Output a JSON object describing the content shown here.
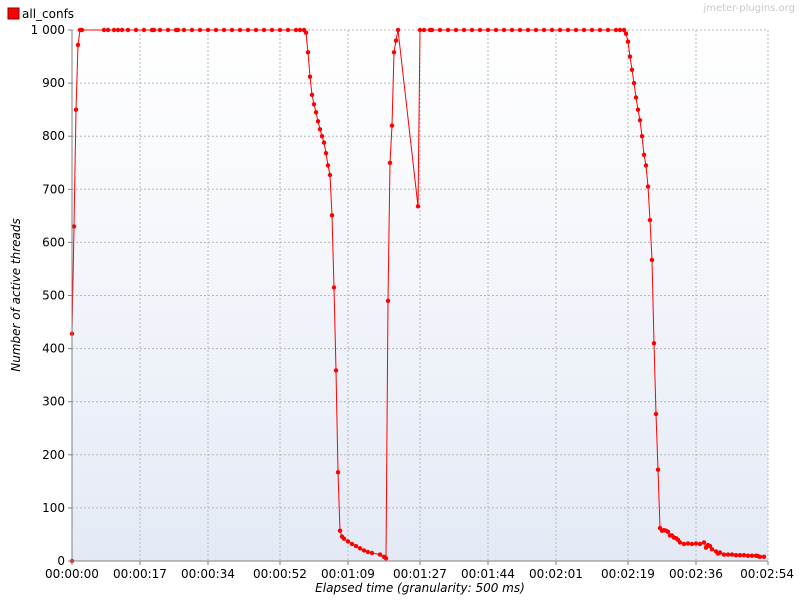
{
  "watermark": "jmeter-plugins.org",
  "chart_data": {
    "type": "line",
    "title": "",
    "xlabel": "Elapsed time (granularity: 500 ms)",
    "ylabel": "Number of active threads",
    "xlim": [
      0,
      174
    ],
    "ylim": [
      0,
      1000
    ],
    "x_ticks": [
      {
        "value": 0,
        "label": "00:00:00"
      },
      {
        "value": 17,
        "label": "00:00:17"
      },
      {
        "value": 34,
        "label": "00:00:34"
      },
      {
        "value": 52,
        "label": "00:00:52"
      },
      {
        "value": 69,
        "label": "00:01:09"
      },
      {
        "value": 87,
        "label": "00:01:27"
      },
      {
        "value": 104,
        "label": "00:01:44"
      },
      {
        "value": 121,
        "label": "00:02:01"
      },
      {
        "value": 139,
        "label": "00:02:19"
      },
      {
        "value": 156,
        "label": "00:02:36"
      },
      {
        "value": 174,
        "label": "00:02:54"
      }
    ],
    "y_ticks": [
      {
        "value": 0,
        "label": "0"
      },
      {
        "value": 100,
        "label": "100"
      },
      {
        "value": 200,
        "label": "200"
      },
      {
        "value": 300,
        "label": "300"
      },
      {
        "value": 400,
        "label": "400"
      },
      {
        "value": 500,
        "label": "500"
      },
      {
        "value": 600,
        "label": "600"
      },
      {
        "value": 700,
        "label": "700"
      },
      {
        "value": 800,
        "label": "800"
      },
      {
        "value": 900,
        "label": "900"
      },
      {
        "value": 1000,
        "label": "1 000"
      }
    ],
    "grid": true,
    "legend": "top-left",
    "series": [
      {
        "name": "all_confs",
        "color": "#ff0000",
        "points": [
          [
            0,
            0
          ],
          [
            0,
            428
          ],
          [
            0.5,
            630
          ],
          [
            1,
            850
          ],
          [
            1.5,
            972
          ],
          [
            2,
            1000
          ],
          [
            2.5,
            1000
          ],
          [
            8,
            1000
          ],
          [
            9,
            1000
          ],
          [
            10.5,
            1000
          ],
          [
            11.5,
            1000
          ],
          [
            12.5,
            1000
          ],
          [
            14,
            1000
          ],
          [
            16,
            1000
          ],
          [
            18,
            1000
          ],
          [
            20,
            1000
          ],
          [
            20.5,
            1000
          ],
          [
            22,
            1000
          ],
          [
            24,
            1000
          ],
          [
            26,
            1000
          ],
          [
            26.5,
            1000
          ],
          [
            28,
            1000
          ],
          [
            30,
            1000
          ],
          [
            32,
            1000
          ],
          [
            34,
            1000
          ],
          [
            36,
            1000
          ],
          [
            38,
            1000
          ],
          [
            40,
            1000
          ],
          [
            42,
            1000
          ],
          [
            44,
            1000
          ],
          [
            46,
            1000
          ],
          [
            48,
            1000
          ],
          [
            50,
            1000
          ],
          [
            52,
            1000
          ],
          [
            54,
            1000
          ],
          [
            56,
            1000
          ],
          [
            57,
            1000
          ],
          [
            58,
            1000
          ],
          [
            58.5,
            995
          ],
          [
            59,
            958
          ],
          [
            59.5,
            912
          ],
          [
            60,
            878
          ],
          [
            60.5,
            860
          ],
          [
            61,
            845
          ],
          [
            61.5,
            828
          ],
          [
            62,
            813
          ],
          [
            62.5,
            800
          ],
          [
            63,
            788
          ],
          [
            63.5,
            768
          ],
          [
            64,
            745
          ],
          [
            64.5,
            727
          ],
          [
            65,
            651
          ],
          [
            65.5,
            515
          ],
          [
            66,
            359
          ],
          [
            66.5,
            167
          ],
          [
            67,
            57
          ],
          [
            67.5,
            46
          ],
          [
            68,
            42
          ],
          [
            69,
            37
          ],
          [
            70,
            32
          ],
          [
            71,
            28
          ],
          [
            72,
            24
          ],
          [
            73,
            20
          ],
          [
            74,
            17
          ],
          [
            75,
            15
          ],
          [
            77,
            12
          ],
          [
            78,
            8
          ],
          [
            78.5,
            5
          ],
          [
            79,
            490
          ],
          [
            79.5,
            750
          ],
          [
            80,
            820
          ],
          [
            80.5,
            958
          ],
          [
            81,
            980
          ],
          [
            81.5,
            1000
          ],
          [
            86.5,
            668
          ],
          [
            87,
            1000
          ],
          [
            88,
            1000
          ],
          [
            89.5,
            1000
          ],
          [
            90,
            1000
          ],
          [
            92,
            1000
          ],
          [
            94,
            1000
          ],
          [
            96,
            1000
          ],
          [
            98,
            1000
          ],
          [
            100,
            1000
          ],
          [
            102,
            1000
          ],
          [
            104,
            1000
          ],
          [
            106,
            1000
          ],
          [
            108,
            1000
          ],
          [
            110,
            1000
          ],
          [
            112,
            1000
          ],
          [
            114,
            1000
          ],
          [
            116,
            1000
          ],
          [
            118,
            1000
          ],
          [
            120,
            1000
          ],
          [
            122,
            1000
          ],
          [
            124,
            1000
          ],
          [
            126,
            1000
          ],
          [
            128,
            1000
          ],
          [
            130,
            1000
          ],
          [
            132,
            1000
          ],
          [
            134,
            1000
          ],
          [
            136,
            1000
          ],
          [
            137,
            1000
          ],
          [
            138,
            1000
          ],
          [
            138.5,
            993
          ],
          [
            139,
            978
          ],
          [
            139.5,
            950
          ],
          [
            140,
            925
          ],
          [
            140.5,
            900
          ],
          [
            141,
            873
          ],
          [
            141.5,
            850
          ],
          [
            142,
            830
          ],
          [
            142.5,
            800
          ],
          [
            143,
            765
          ],
          [
            143.5,
            745
          ],
          [
            144,
            705
          ],
          [
            144.5,
            642
          ],
          [
            145,
            567
          ],
          [
            145.5,
            410
          ],
          [
            146,
            277
          ],
          [
            146.5,
            172
          ],
          [
            147,
            62
          ],
          [
            147.5,
            57
          ],
          [
            148,
            58
          ],
          [
            148.5,
            57
          ],
          [
            149,
            55
          ],
          [
            149.5,
            48
          ],
          [
            150,
            48
          ],
          [
            150.5,
            44
          ],
          [
            151,
            43
          ],
          [
            151.5,
            40
          ],
          [
            152,
            35
          ],
          [
            153,
            32
          ],
          [
            154,
            33
          ],
          [
            155,
            32
          ],
          [
            156,
            33
          ],
          [
            157,
            32
          ],
          [
            158,
            35
          ],
          [
            158.5,
            25
          ],
          [
            159,
            30
          ],
          [
            159.5,
            28
          ],
          [
            160,
            22
          ],
          [
            161,
            18
          ],
          [
            161.5,
            14
          ],
          [
            162,
            16
          ],
          [
            163,
            12
          ],
          [
            164,
            12
          ],
          [
            165,
            12
          ],
          [
            166,
            11
          ],
          [
            167,
            11
          ],
          [
            168,
            11
          ],
          [
            169,
            10
          ],
          [
            170,
            10
          ],
          [
            171,
            10
          ],
          [
            171.5,
            9
          ],
          [
            172,
            8
          ],
          [
            173,
            8
          ]
        ]
      }
    ]
  }
}
